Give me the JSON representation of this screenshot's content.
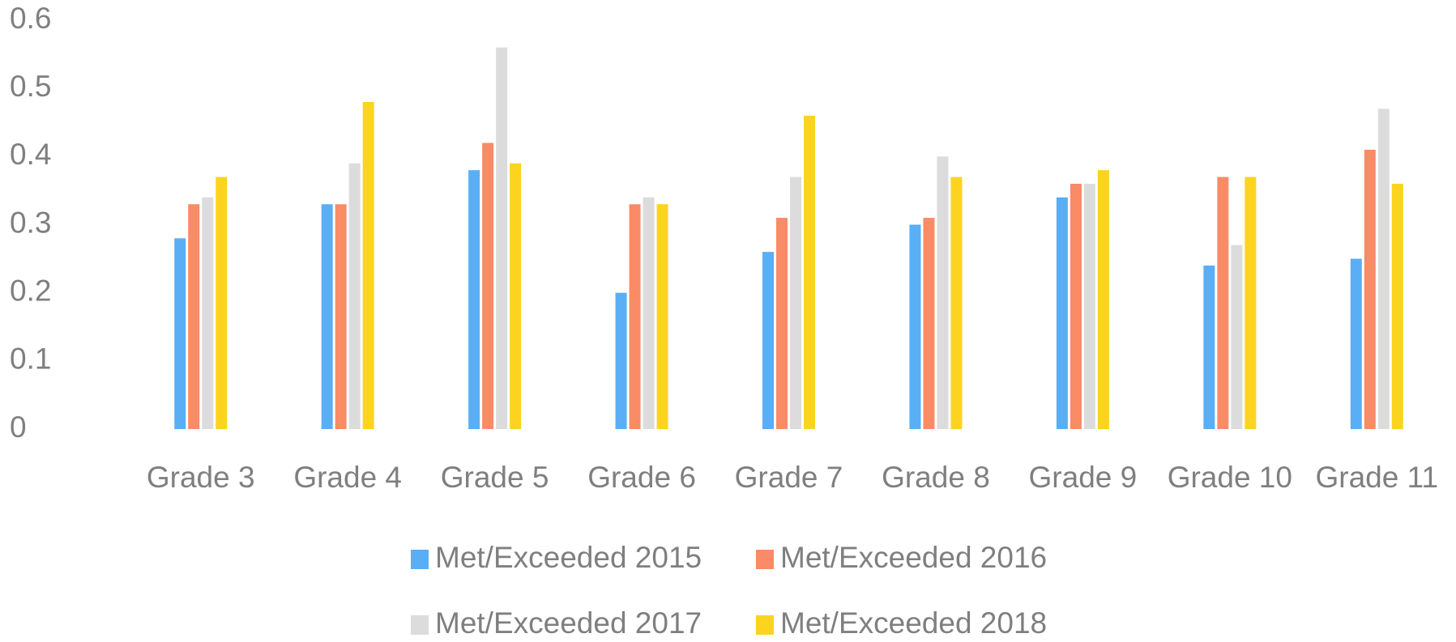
{
  "chart_data": {
    "type": "bar",
    "categories": [
      "Grade 3",
      "Grade 4",
      "Grade 5",
      "Grade 6",
      "Grade 7",
      "Grade 8",
      "Grade 9",
      "Grade 10",
      "Grade 11"
    ],
    "series": [
      {
        "name": "Met/Exceeded 2015",
        "color": "#5aaef5",
        "values": [
          0.28,
          0.33,
          0.38,
          0.2,
          0.26,
          0.3,
          0.34,
          0.24,
          0.25
        ]
      },
      {
        "name": "Met/Exceeded 2016",
        "color": "#f98b66",
        "values": [
          0.33,
          0.33,
          0.42,
          0.33,
          0.31,
          0.31,
          0.36,
          0.37,
          0.41
        ]
      },
      {
        "name": "Met/Exceeded 2017",
        "color": "#dcdcdc",
        "values": [
          0.34,
          0.39,
          0.56,
          0.34,
          0.37,
          0.4,
          0.36,
          0.27,
          0.47
        ]
      },
      {
        "name": "Met/Exceeded 2018",
        "color": "#fcd420",
        "values": [
          0.37,
          0.48,
          0.39,
          0.33,
          0.46,
          0.37,
          0.38,
          0.37,
          0.36
        ]
      }
    ],
    "ylim": [
      0,
      0.6
    ],
    "yticks": [
      0,
      0.1,
      0.2,
      0.3,
      0.4,
      0.5,
      0.6
    ],
    "grid": false,
    "legend": "bottom"
  }
}
